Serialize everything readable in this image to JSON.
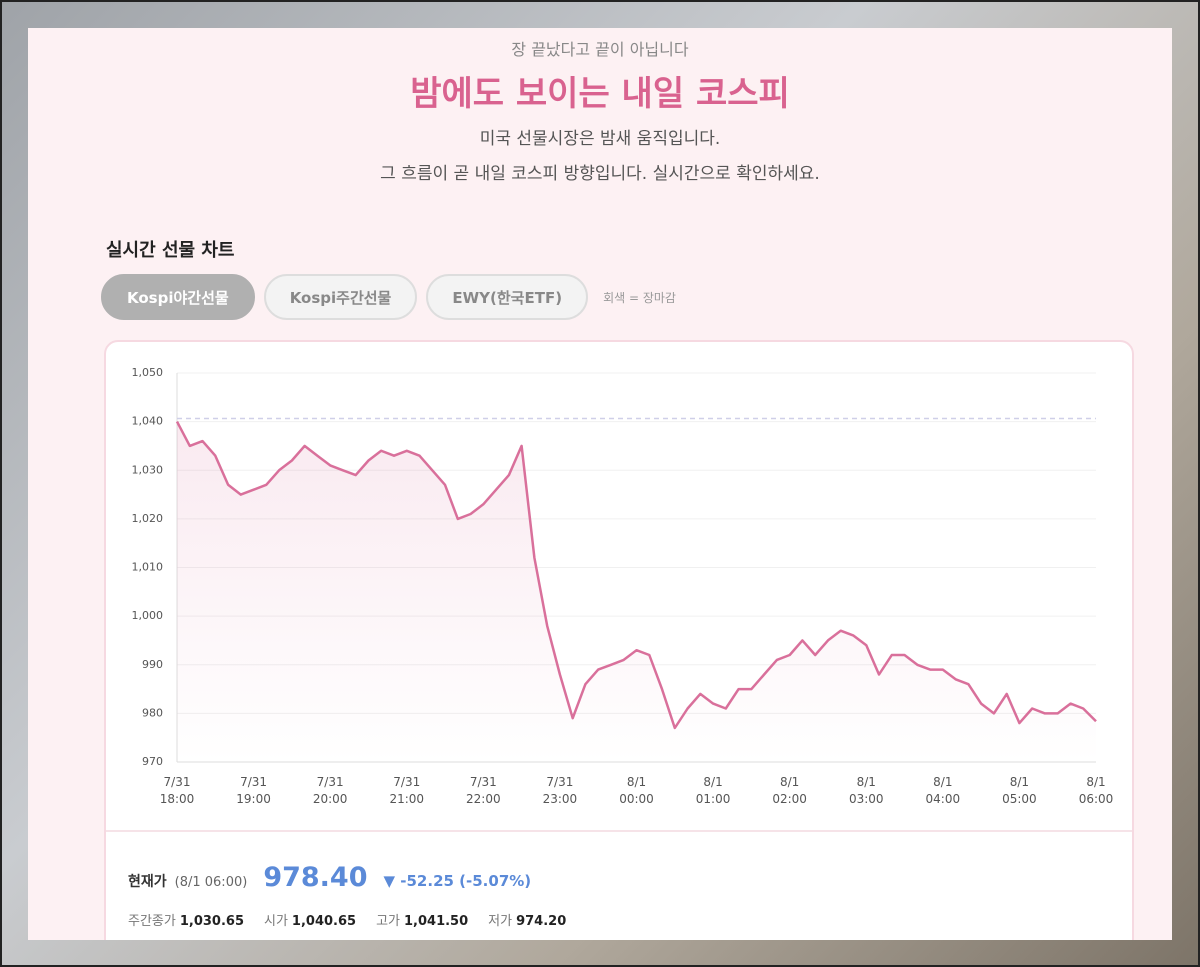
{
  "header": {
    "kicker": "장 끝났다고 끝이 아닙니다",
    "title": "밤에도 보이는 내일 코스피",
    "description": [
      "미국 선물시장은 밤새 움직입니다.",
      "그 흐름이 곧 내일 코스피 방향입니다. 실시간으로 확인하세요."
    ]
  },
  "section_title": "실시간 선물 차트",
  "tabs": [
    {
      "label": "Kospi야간선물",
      "active": true
    },
    {
      "label": "Kospi주간선물",
      "active": false
    },
    {
      "label": "EWY(한국ETF)",
      "active": false
    }
  ],
  "tab_note": "회색 = 장마감",
  "chart_data": {
    "type": "line",
    "categories": [
      "7/31\n18:00",
      null,
      null,
      null,
      null,
      null,
      "7/31\n19:00",
      null,
      null,
      null,
      null,
      null,
      "7/31\n20:00",
      null,
      null,
      null,
      null,
      null,
      "7/31\n21:00",
      null,
      null,
      null,
      null,
      null,
      "7/31\n22:00",
      null,
      null,
      null,
      null,
      null,
      "7/31\n23:00",
      null,
      null,
      null,
      null,
      null,
      "8/1\n00:00",
      null,
      null,
      null,
      null,
      null,
      "8/1\n01:00",
      null,
      null,
      null,
      null,
      null,
      "8/1\n02:00",
      null,
      null,
      null,
      null,
      null,
      "8/1\n03:00",
      null,
      null,
      null,
      null,
      null,
      "8/1\n04:00",
      null,
      null,
      null,
      null,
      null,
      "8/1\n05:00",
      null,
      null,
      null,
      null,
      null,
      "8/1\n06:00"
    ],
    "series": [
      {
        "color": "#d9709b",
        "values": [
          1040,
          1035,
          1036,
          1033,
          1027,
          1025,
          1026,
          1027,
          1030,
          1032,
          1035,
          1033,
          1031,
          1030,
          1029,
          1032,
          1034,
          1033,
          1034,
          1033,
          1030,
          1027,
          1020,
          1021,
          1023,
          1026,
          1029,
          1035,
          1012,
          998,
          988,
          979,
          986,
          989,
          990,
          991,
          993,
          992,
          985,
          977,
          981,
          984,
          982,
          981,
          985,
          985,
          988,
          991,
          992,
          995,
          992,
          995,
          997,
          996,
          994,
          988,
          992,
          992,
          990,
          989,
          989,
          987,
          986,
          982,
          980,
          984,
          978,
          981,
          980,
          980,
          982,
          981,
          978.4
        ]
      }
    ],
    "baseline": 1040.65,
    "ylim": [
      970,
      1050
    ],
    "yticks": [
      970,
      980,
      990,
      {
        "value": 1000,
        "label": "1,000"
      },
      {
        "value": 1010,
        "label": "1,010"
      },
      {
        "value": 1020,
        "label": "1,020"
      },
      {
        "value": 1030,
        "label": "1,030"
      },
      {
        "value": 1040,
        "label": "1,040"
      },
      {
        "value": 1050,
        "label": "1,050"
      }
    ],
    "grid": true
  },
  "quote": {
    "label": "현재가",
    "time": "(8/1 06:00)",
    "price": "978.40",
    "change": "▼ -52.25 (-5.07%)"
  },
  "stats": [
    {
      "label": "주간종가",
      "value": "1,030.65"
    },
    {
      "label": "시가",
      "value": "1,040.65"
    },
    {
      "label": "고가",
      "value": "1,041.50"
    },
    {
      "label": "저가",
      "value": "974.20"
    }
  ]
}
